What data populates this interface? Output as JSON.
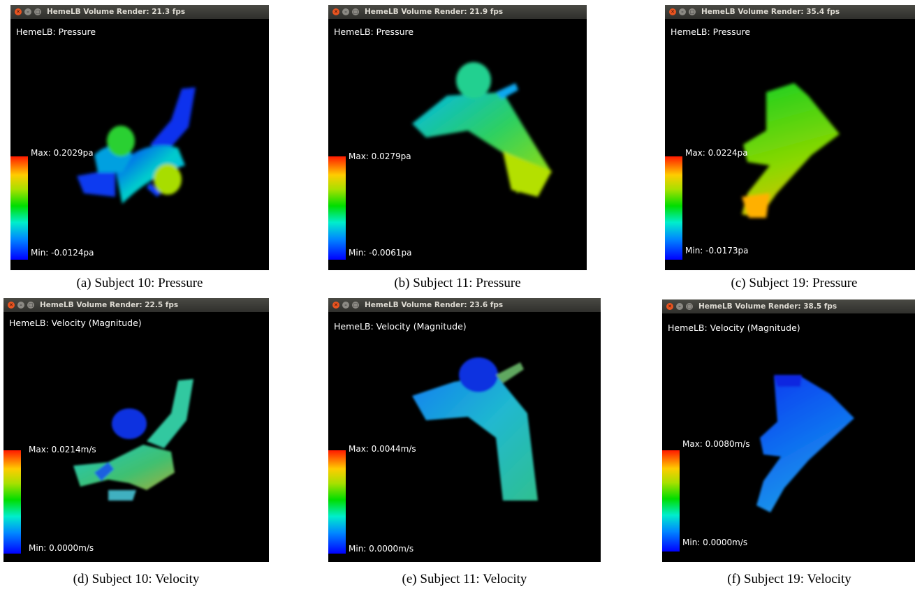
{
  "panels": [
    {
      "title": "HemeLB Volume Render: 21.3 fps",
      "view_label": "HemeLB: Pressure",
      "max_label": "Max: 0.2029pa",
      "min_label": "Min: -0.0124pa",
      "caption": "(a) Subject 10: Pressure"
    },
    {
      "title": "HemeLB Volume Render: 21.9 fps",
      "view_label": "HemeLB: Pressure",
      "max_label": "Max: 0.0279pa",
      "min_label": "Min: -0.0061pa",
      "caption": "(b) Subject 11: Pressure"
    },
    {
      "title": "HemeLB Volume Render: 35.4 fps",
      "view_label": "HemeLB: Pressure",
      "max_label": "Max: 0.0224pa",
      "min_label": "Min: -0.0173pa",
      "caption": "(c) Subject 19: Pressure"
    },
    {
      "title": "HemeLB Volume Render: 22.5 fps",
      "view_label": "HemeLB: Velocity (Magnitude)",
      "max_label": "Max: 0.0214m/s",
      "min_label": "Min: 0.0000m/s",
      "caption": "(d) Subject 10: Velocity"
    },
    {
      "title": "HemeLB Volume Render: 23.6 fps",
      "view_label": "HemeLB: Velocity (Magnitude)",
      "max_label": "Max: 0.0044m/s",
      "min_label": "Min: 0.0000m/s",
      "caption": "(e) Subject 11: Velocity"
    },
    {
      "title": "HemeLB Volume Render: 38.5 fps",
      "view_label": "HemeLB: Velocity (Magnitude)",
      "max_label": "Max: 0.0080m/s",
      "min_label": "Min: 0.0000m/s",
      "caption": "(f) Subject 19: Velocity"
    }
  ],
  "colors": {
    "titlebar": "#3c3b37",
    "close_button": "#e95420",
    "viewport_background": "#000000",
    "colormap": [
      "#ff1a00",
      "#ffcc00",
      "#00dd00",
      "#00eecc",
      "#0000ff"
    ]
  },
  "icons": {
    "close": "close-icon",
    "minimize": "minimize-icon",
    "maximize": "maximize-icon"
  }
}
